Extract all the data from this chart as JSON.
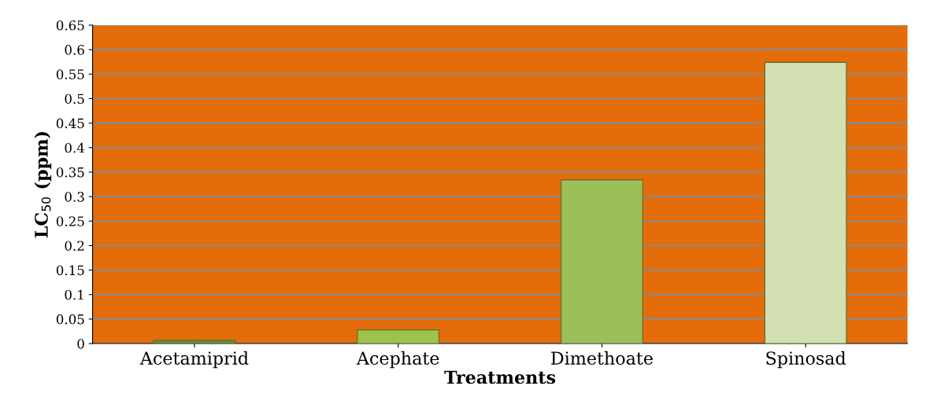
{
  "chart_data": {
    "type": "bar",
    "xlabel": "Treatments",
    "ylabel": "LC$_{50}$ (ppm)",
    "categories": [
      "Acetamiprid",
      "Acephate",
      "Dimethoate",
      "Spinosad"
    ],
    "values": [
      0.007,
      0.028,
      0.334,
      0.574
    ],
    "colors": [
      "#6e8b2e",
      "#9cc44a",
      "#9cbf5a",
      "#d2e0b2"
    ],
    "ylim": [
      0,
      0.65
    ],
    "yticks": [
      0,
      0.05,
      0.1,
      0.15,
      0.2,
      0.25,
      0.3,
      0.35,
      0.4,
      0.45,
      0.5,
      0.55,
      0.6,
      0.65
    ],
    "grid": "y"
  }
}
